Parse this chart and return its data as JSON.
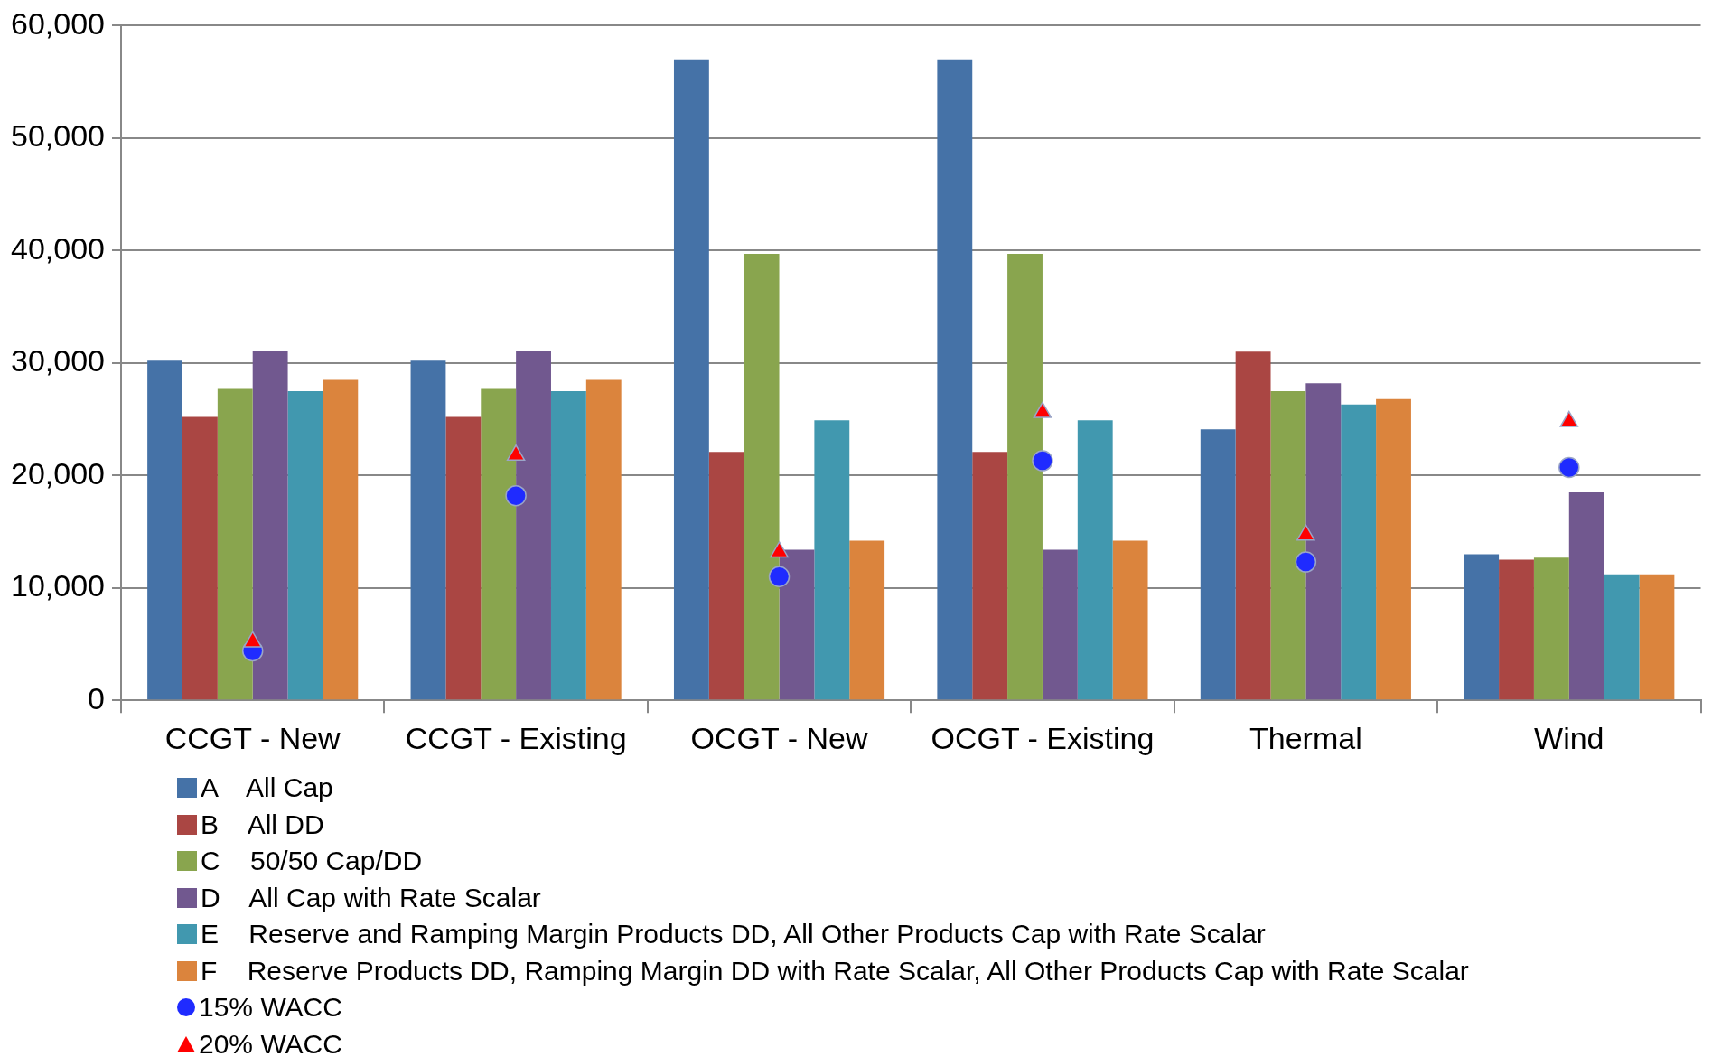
{
  "chart_data": {
    "type": "bar",
    "categories": [
      "CCGT - New",
      "CCGT - Existing",
      "OCGT - New",
      "OCGT - Existing",
      "Thermal",
      "Wind"
    ],
    "series": [
      {
        "name": "A    All Cap",
        "color": "#4572a7",
        "values": [
          30200,
          30200,
          57000,
          57000,
          24100,
          13000
        ]
      },
      {
        "name": "B    All DD",
        "color": "#aa4643",
        "values": [
          25200,
          25200,
          22100,
          22100,
          31000,
          12500
        ]
      },
      {
        "name": "C    50/50 Cap/DD",
        "color": "#89a54e",
        "values": [
          27700,
          27700,
          39700,
          39700,
          27500,
          12700
        ]
      },
      {
        "name": "D    All Cap with Rate Scalar",
        "color": "#71588f",
        "values": [
          31100,
          31100,
          13400,
          13400,
          28200,
          18500
        ]
      },
      {
        "name": "E    Reserve and Ramping Margin Products DD, All Other Products Cap with Rate Scalar",
        "color": "#4198af",
        "values": [
          27500,
          27500,
          24900,
          24900,
          26300,
          11200
        ]
      },
      {
        "name": "F    Reserve Products DD, Ramping Margin DD with Rate Scalar, All Other Products Cap with Rate Scalar",
        "color": "#db843d",
        "values": [
          28500,
          28500,
          14200,
          14200,
          26800,
          11200
        ]
      },
      {
        "name": "15% WACC",
        "type": "scatter",
        "marker": "circle",
        "color": "#1f2bff",
        "x": [
          "CCGT - New",
          "CCGT - Existing",
          "OCGT - New",
          "OCGT - Existing",
          "Thermal",
          "Wind"
        ],
        "values": [
          4400,
          18200,
          11000,
          21300,
          12300,
          20700
        ]
      },
      {
        "name": "20% WACC",
        "type": "scatter",
        "marker": "triangle",
        "color": "#ff0000",
        "x": [
          "CCGT - New",
          "CCGT - Existing",
          "OCGT - New",
          "OCGT - Existing",
          "Thermal",
          "Wind"
        ],
        "values": [
          5200,
          21800,
          13200,
          25600,
          14700,
          24800
        ]
      }
    ],
    "ylim": [
      0,
      60000
    ],
    "yticks": [
      {
        "value": 0,
        "label": "0"
      },
      {
        "value": 10000,
        "label": "10,000"
      },
      {
        "value": 20000,
        "label": "20,000"
      },
      {
        "value": 30000,
        "label": "30,000"
      },
      {
        "value": 40000,
        "label": "40,000"
      },
      {
        "value": 50000,
        "label": "50,000"
      },
      {
        "value": 60000,
        "label": "60,000"
      }
    ],
    "grid": "y",
    "legend": "bottom left"
  }
}
